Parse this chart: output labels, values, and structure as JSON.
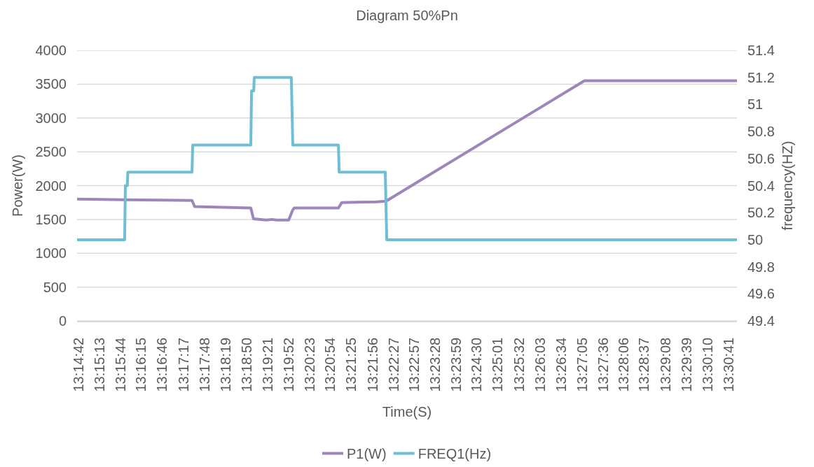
{
  "chart_data": {
    "type": "line",
    "title": "Diagram 50%Pn",
    "xlabel": "Time(S)",
    "ylabel": "Power(W)",
    "y2label": "frequency(HZ)",
    "series": [
      {
        "name": "P1(W)",
        "color": "#9d86b9",
        "x": [
          13.2445,
          13.2639,
          13.2915,
          13.2926,
          13.3156,
          13.3167,
          13.3219,
          13.3242,
          13.3262,
          13.3311,
          13.3328,
          13.3334,
          13.3515,
          13.3529,
          13.367,
          13.371,
          13.4523,
          13.5145
        ],
        "values": [
          1800,
          1790,
          1780,
          1690,
          1670,
          1510,
          1490,
          1500,
          1490,
          1490,
          1640,
          1670,
          1670,
          1750,
          1760,
          1770,
          3550,
          3550
        ]
      },
      {
        "name": "FREQ1(Hz)",
        "color": "#6fbfd4",
        "axis": "y2",
        "x": [
          13.2445,
          13.2639,
          13.2642,
          13.265,
          13.2652,
          13.2915,
          13.2918,
          13.3156,
          13.3159,
          13.3168,
          13.317,
          13.3322,
          13.3328,
          13.3515,
          13.3518,
          13.3707,
          13.3713,
          13.5145
        ],
        "values": [
          50.0,
          50.0,
          50.4,
          50.4,
          50.5,
          50.5,
          50.7,
          50.7,
          51.1,
          51.1,
          51.2,
          51.2,
          50.7,
          50.7,
          50.5,
          50.5,
          50.0,
          50.0
        ]
      }
    ],
    "xlim": [
      13.2444,
      13.5148
    ],
    "xticks": [
      {
        "value": 13.245,
        "label": "13:14:42"
      },
      {
        "value": 13.2536,
        "label": "13:15:13"
      },
      {
        "value": 13.2622,
        "label": "13:15:44"
      },
      {
        "value": 13.2708,
        "label": "13:16:15"
      },
      {
        "value": 13.2794,
        "label": "13:16:46"
      },
      {
        "value": 13.2881,
        "label": "13:17:17"
      },
      {
        "value": 13.2967,
        "label": "13:17:48"
      },
      {
        "value": 13.3053,
        "label": "13:18:19"
      },
      {
        "value": 13.3139,
        "label": "13:18:50"
      },
      {
        "value": 13.3225,
        "label": "13:19:21"
      },
      {
        "value": 13.3311,
        "label": "13:19:52"
      },
      {
        "value": 13.3397,
        "label": "13:20:23"
      },
      {
        "value": 13.3483,
        "label": "13:20:54"
      },
      {
        "value": 13.3569,
        "label": "13:21:25"
      },
      {
        "value": 13.3656,
        "label": "13:21:56"
      },
      {
        "value": 13.3742,
        "label": "13:22:27"
      },
      {
        "value": 13.3825,
        "label": "13:22:57"
      },
      {
        "value": 13.3911,
        "label": "13:23:28"
      },
      {
        "value": 13.3997,
        "label": "13:23:59"
      },
      {
        "value": 13.4083,
        "label": "13:24:30"
      },
      {
        "value": 13.4169,
        "label": "13:25:01"
      },
      {
        "value": 13.4256,
        "label": "13:25:32"
      },
      {
        "value": 13.4342,
        "label": "13:26:03"
      },
      {
        "value": 13.4428,
        "label": "13:26:34"
      },
      {
        "value": 13.4514,
        "label": "13:27:05"
      },
      {
        "value": 13.46,
        "label": "13:27:36"
      },
      {
        "value": 13.4683,
        "label": "13:28:06"
      },
      {
        "value": 13.4769,
        "label": "13:28:37"
      },
      {
        "value": 13.4856,
        "label": "13:29:08"
      },
      {
        "value": 13.4942,
        "label": "13:29:39"
      },
      {
        "value": 13.5028,
        "label": "13:30:10"
      },
      {
        "value": 13.5114,
        "label": "13:30:41"
      }
    ],
    "ylim": [
      0,
      4000
    ],
    "yticks": [
      0,
      500,
      1000,
      1500,
      2000,
      2500,
      3000,
      3500,
      4000
    ],
    "y2lim": [
      49.4,
      51.4
    ],
    "y2ticks": [
      49.4,
      49.6,
      49.8,
      50,
      50.2,
      50.4,
      50.6,
      50.8,
      51,
      51.2,
      51.4
    ],
    "grid": "y",
    "legend": "bottom",
    "line_style": "solid"
  }
}
